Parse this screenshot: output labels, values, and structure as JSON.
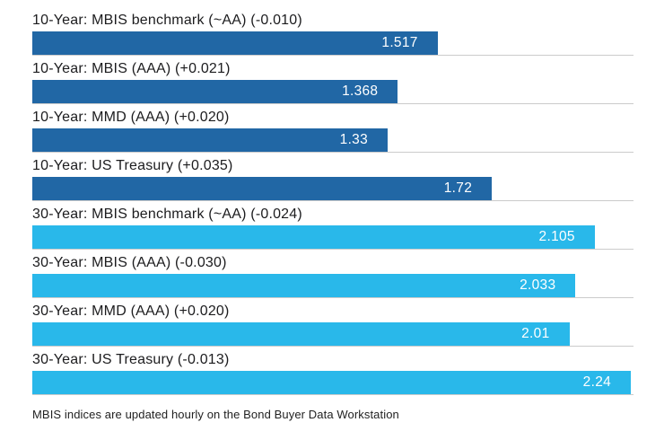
{
  "chart_data": {
    "type": "bar",
    "orientation": "horizontal",
    "title": "",
    "xlabel": "",
    "ylabel": "",
    "xlim": [
      0,
      2.25
    ],
    "grid": "baseline-per-bar",
    "legend": "none",
    "categories": [
      "10-Year: MBIS benchmark (~AA) (-0.010)",
      "10-Year: MBIS (AAA) (+0.021)",
      "10-Year: MMD (AAA) (+0.020)",
      "10-Year: US Treasury (+0.035)",
      "30-Year: MBIS benchmark (~AA) (-0.024)",
      "30-Year: MBIS (AAA) (-0.030)",
      "30-Year: MMD (AAA) (+0.020)",
      "30-Year: US Treasury (-0.013)"
    ],
    "values": [
      1.517,
      1.368,
      1.33,
      1.72,
      2.105,
      2.033,
      2.01,
      2.24
    ],
    "value_labels": [
      "1.517",
      "1.368",
      "1.33",
      "1.72",
      "2.105",
      "2.033",
      "2.01",
      "2.24"
    ],
    "series_colors": {
      "ten_year": "#2167a5",
      "thirty_year": "#29b8ea"
    },
    "bar_colors": [
      "#2167a5",
      "#2167a5",
      "#2167a5",
      "#2167a5",
      "#29b8ea",
      "#29b8ea",
      "#29b8ea",
      "#29b8ea"
    ],
    "gridline_color": "#cbcbcb",
    "footnote": "MBIS indices are updated hourly on the Bond Buyer Data Workstation"
  }
}
